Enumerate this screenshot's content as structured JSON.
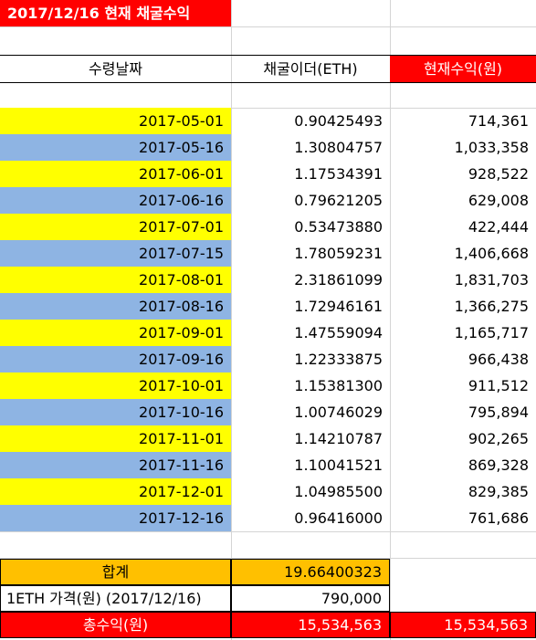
{
  "title": "2017/12/16 현재 채굴수익",
  "headers": {
    "date": "수령날짜",
    "mined": "채굴이더(ETH)",
    "value": "현재수익(원)"
  },
  "rows": [
    {
      "date": "2017-05-01",
      "eth": "0.90425493",
      "krw": "714,361"
    },
    {
      "date": "2017-05-16",
      "eth": "1.30804757",
      "krw": "1,033,358"
    },
    {
      "date": "2017-06-01",
      "eth": "1.17534391",
      "krw": "928,522"
    },
    {
      "date": "2017-06-16",
      "eth": "0.79621205",
      "krw": "629,008"
    },
    {
      "date": "2017-07-01",
      "eth": "0.53473880",
      "krw": "422,444"
    },
    {
      "date": "2017-07-15",
      "eth": "1.78059231",
      "krw": "1,406,668"
    },
    {
      "date": "2017-08-01",
      "eth": "2.31861099",
      "krw": "1,831,703"
    },
    {
      "date": "2017-08-16",
      "eth": "1.72946161",
      "krw": "1,366,275"
    },
    {
      "date": "2017-09-01",
      "eth": "1.47559094",
      "krw": "1,165,717"
    },
    {
      "date": "2017-09-16",
      "eth": "1.22333875",
      "krw": "966,438"
    },
    {
      "date": "2017-10-01",
      "eth": "1.15381300",
      "krw": "911,512"
    },
    {
      "date": "2017-10-16",
      "eth": "1.00746029",
      "krw": "795,894"
    },
    {
      "date": "2017-11-01",
      "eth": "1.14210787",
      "krw": "902,265"
    },
    {
      "date": "2017-11-16",
      "eth": "1.10041521",
      "krw": "869,328"
    },
    {
      "date": "2017-12-01",
      "eth": "1.04985500",
      "krw": "829,385"
    },
    {
      "date": "2017-12-16",
      "eth": "0.96416000",
      "krw": "761,686"
    }
  ],
  "summary": {
    "total_label": "합계",
    "total_eth": "19.66400323",
    "price_label": "1ETH 가격(원) (2017/12/16)",
    "price_value": "790,000",
    "revenue_label": "총수익(원)",
    "revenue_value": "15,534,563",
    "revenue_value_2": "15,534,563"
  },
  "colors": {
    "title_bg": "#ff0000",
    "odd_row_date_bg": "#ffff00",
    "even_row_date_bg": "#8eb4e3",
    "total_bg": "#ffc000",
    "revenue_bg": "#ff0000",
    "grid": "#d4d4d4"
  }
}
